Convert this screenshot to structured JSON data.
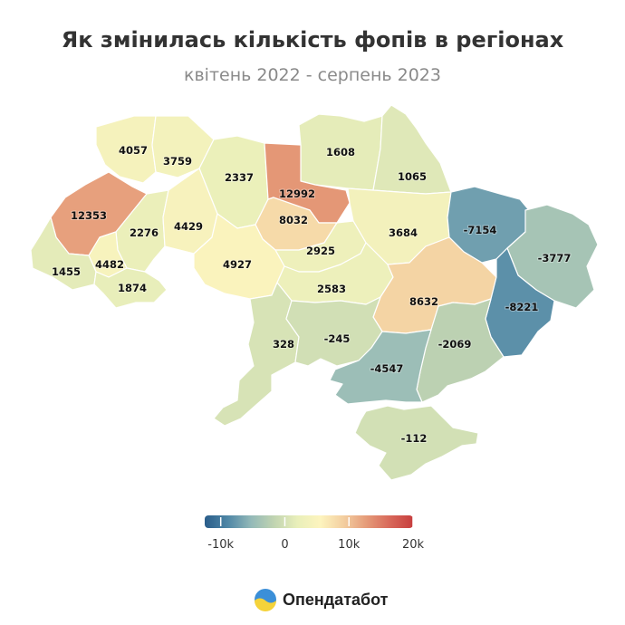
{
  "title": "Як змінилась кількість фопів в регіонах",
  "subtitle": "квітень 2022 - серпень 2023",
  "brand": {
    "name": "Опендатабот",
    "logo_icon": "opendatabot-logo-icon"
  },
  "chart_data": {
    "type": "choropleth",
    "title": "Як змінилась кількість фопів в регіонах",
    "subtitle": "квітень 2022 - серпень 2023",
    "values": [
      {
        "value": 4057
      },
      {
        "value": 3759
      },
      {
        "value": 2337
      },
      {
        "value": 1608
      },
      {
        "value": 1065
      },
      {
        "value": 12992
      },
      {
        "value": 12353
      },
      {
        "value": 2276
      },
      {
        "value": 4429
      },
      {
        "value": 8032
      },
      {
        "value": 3684
      },
      {
        "value": -7154
      },
      {
        "value": 2925
      },
      {
        "value": 4482
      },
      {
        "value": 4927
      },
      {
        "value": -3777
      },
      {
        "value": 1455
      },
      {
        "value": 1874
      },
      {
        "value": 2583
      },
      {
        "value": 8632
      },
      {
        "value": -8221
      },
      {
        "value": 328
      },
      {
        "value": -245
      },
      {
        "value": -2069
      },
      {
        "value": -4547
      },
      {
        "value": -112
      }
    ],
    "legend": {
      "ticks": [
        {
          "value": -10000,
          "label": "-10k"
        },
        {
          "value": 0,
          "label": "0"
        },
        {
          "value": 10000,
          "label": "10k"
        },
        {
          "value": 20000,
          "label": "20k"
        }
      ],
      "range": [
        -12500,
        20000
      ],
      "colors": [
        "#2a5d8a",
        "#4f87a6",
        "#93b9b8",
        "#c1d4b1",
        "#e9efba",
        "#fdf4be",
        "#f3cea0",
        "#e59a78",
        "#d8685a",
        "#c73e3e"
      ],
      "placement": "bottom"
    }
  }
}
